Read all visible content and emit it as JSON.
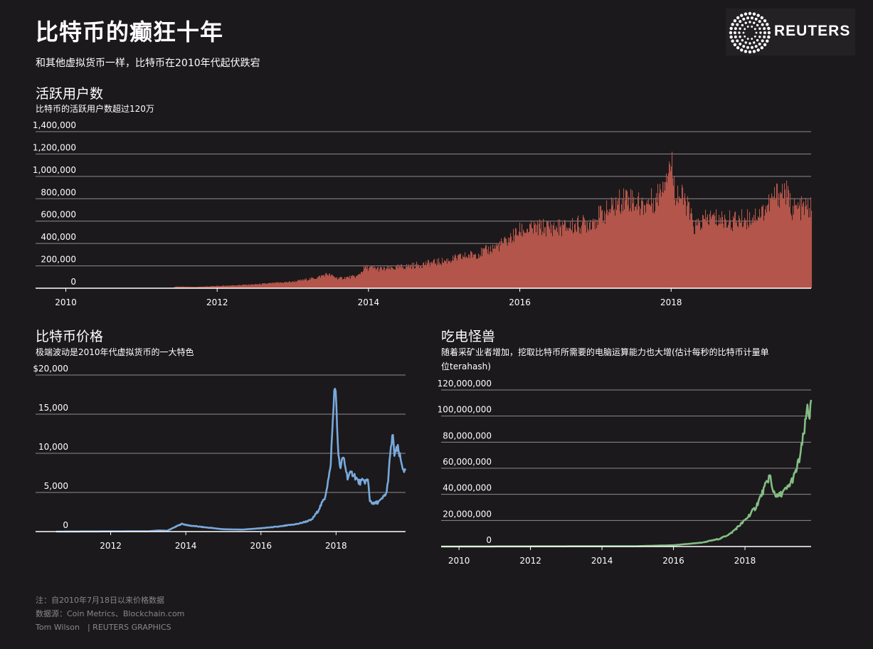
{
  "title": "比特币的癫狂十年",
  "subtitle": "和其他虚拟货币一样，比特币在2010年代起伏跌宕",
  "logo": {
    "text": "REUTERS",
    "icon": "reuters-dot-circle-icon"
  },
  "colors": {
    "background": "#1b191b",
    "users": "#b3554a",
    "price": "#79a9dc",
    "hashrate": "#84bd84",
    "grid": "#8e8c8e"
  },
  "sections": {
    "users": {
      "title": "活跃用户数",
      "subtitle": "比特币的活跃用户数超过120万"
    },
    "price": {
      "title": "比特币价格",
      "subtitle": "极端波动是2010年代虚拟货币的一大特色"
    },
    "hashrate": {
      "title": "吃电怪兽",
      "subtitle_line1": "随着采矿业者增加，挖取比特币所需要的电脑运算能力也大增(估计每秒的比特币计量单",
      "subtitle_line2": "位terahash)"
    }
  },
  "chart_data": [
    {
      "type": "area",
      "name": "users",
      "x_ticks": [
        "2010",
        "2012",
        "2014",
        "2016",
        "2018"
      ],
      "y_ticks": [
        "0",
        "200,000",
        "400,000",
        "600,000",
        "800,000",
        "1,000,000",
        "1,200,000",
        "1,400,000"
      ],
      "xlim": [
        2009.6,
        2019.85
      ],
      "ylim": [
        0,
        1400000
      ],
      "grid": true,
      "points": [
        [
          2011.4,
          0
        ],
        [
          2011.45,
          15000
        ],
        [
          2011.7,
          12000
        ],
        [
          2012.0,
          20000
        ],
        [
          2012.5,
          35000
        ],
        [
          2013.0,
          60000
        ],
        [
          2013.3,
          95000
        ],
        [
          2013.45,
          130000
        ],
        [
          2013.6,
          90000
        ],
        [
          2013.85,
          110000
        ],
        [
          2013.95,
          190000
        ],
        [
          2014.2,
          175000
        ],
        [
          2014.6,
          210000
        ],
        [
          2015.0,
          250000
        ],
        [
          2015.5,
          330000
        ],
        [
          2015.8,
          420000
        ],
        [
          2016.0,
          530000
        ],
        [
          2016.3,
          560000
        ],
        [
          2016.6,
          560000
        ],
        [
          2016.9,
          600000
        ],
        [
          2017.2,
          730000
        ],
        [
          2017.4,
          850000
        ],
        [
          2017.6,
          760000
        ],
        [
          2017.8,
          820000
        ],
        [
          2017.95,
          1100000
        ],
        [
          2018.0,
          1150000
        ],
        [
          2018.05,
          900000
        ],
        [
          2018.2,
          780000
        ],
        [
          2018.3,
          560000
        ],
        [
          2018.5,
          650000
        ],
        [
          2018.8,
          620000
        ],
        [
          2019.0,
          640000
        ],
        [
          2019.2,
          700000
        ],
        [
          2019.4,
          870000
        ],
        [
          2019.5,
          900000
        ],
        [
          2019.6,
          730000
        ],
        [
          2019.85,
          740000
        ]
      ]
    },
    {
      "type": "line",
      "name": "price",
      "x_ticks": [
        "2012",
        "2014",
        "2016",
        "2018"
      ],
      "y_ticks": [
        "0",
        "5,000",
        "10,000",
        "15,000",
        "$20,000"
      ],
      "xlim": [
        2010.0,
        2019.85
      ],
      "ylim": [
        0,
        20000
      ],
      "grid": true,
      "points": [
        [
          2010.55,
          0
        ],
        [
          2011.5,
          20
        ],
        [
          2013.0,
          40
        ],
        [
          2013.3,
          150
        ],
        [
          2013.5,
          100
        ],
        [
          2013.9,
          1000
        ],
        [
          2014.05,
          800
        ],
        [
          2014.5,
          550
        ],
        [
          2015.0,
          300
        ],
        [
          2015.5,
          250
        ],
        [
          2016.0,
          430
        ],
        [
          2016.5,
          650
        ],
        [
          2017.0,
          1000
        ],
        [
          2017.35,
          1500
        ],
        [
          2017.5,
          2500
        ],
        [
          2017.7,
          4300
        ],
        [
          2017.85,
          8000
        ],
        [
          2017.97,
          19500
        ],
        [
          2018.05,
          11000
        ],
        [
          2018.1,
          8000
        ],
        [
          2018.2,
          9500
        ],
        [
          2018.3,
          7000
        ],
        [
          2018.45,
          7500
        ],
        [
          2018.6,
          6300
        ],
        [
          2018.85,
          6500
        ],
        [
          2018.9,
          4000
        ],
        [
          2019.0,
          3500
        ],
        [
          2019.2,
          4000
        ],
        [
          2019.35,
          5000
        ],
        [
          2019.5,
          12500
        ],
        [
          2019.55,
          10000
        ],
        [
          2019.65,
          10500
        ],
        [
          2019.75,
          8500
        ],
        [
          2019.85,
          7500
        ]
      ]
    },
    {
      "type": "line",
      "name": "hashrate",
      "x_ticks": [
        "2010",
        "2012",
        "2014",
        "2016",
        "2018"
      ],
      "y_ticks": [
        "0",
        "20,000,000",
        "40,000,000",
        "60,000,000",
        "80,000,000",
        "100,000,000",
        "120,000,000"
      ],
      "xlim": [
        2009.5,
        2019.85
      ],
      "ylim": [
        0,
        120000000
      ],
      "grid": true,
      "points": [
        [
          2009.5,
          0
        ],
        [
          2015.0,
          300000
        ],
        [
          2016.0,
          1000000
        ],
        [
          2016.8,
          3000000
        ],
        [
          2017.3,
          6000000
        ],
        [
          2017.6,
          10000000
        ],
        [
          2018.0,
          20000000
        ],
        [
          2018.3,
          30000000
        ],
        [
          2018.55,
          45000000
        ],
        [
          2018.7,
          55000000
        ],
        [
          2018.75,
          45000000
        ],
        [
          2018.9,
          38000000
        ],
        [
          2019.0,
          40000000
        ],
        [
          2019.2,
          45000000
        ],
        [
          2019.4,
          55000000
        ],
        [
          2019.55,
          70000000
        ],
        [
          2019.7,
          95000000
        ],
        [
          2019.75,
          110000000
        ],
        [
          2019.8,
          100000000
        ],
        [
          2019.85,
          108000000
        ]
      ]
    }
  ],
  "footer": {
    "note": "注：自2010年7月18日以来价格数据",
    "source": "数据源：Coin Metrics、Blockchain.com",
    "credit": "Tom Wilson　| REUTERS GRAPHICS"
  }
}
